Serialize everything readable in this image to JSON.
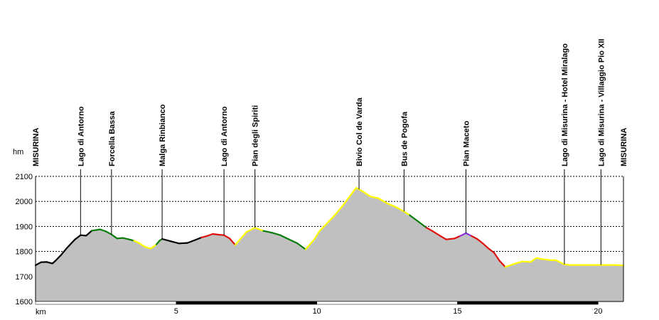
{
  "chart_data": {
    "type": "area",
    "title": "",
    "xlabel": "km",
    "ylabel": "hm",
    "xlim": [
      0,
      20.9
    ],
    "ylim": [
      1600,
      2100
    ],
    "x_ticks": [
      0,
      5,
      10,
      15,
      20
    ],
    "x_tick_labels": [
      "",
      "5",
      "10",
      "15",
      "20"
    ],
    "y_ticks": [
      1600,
      1700,
      1800,
      1900,
      2000,
      2100
    ],
    "grid": "horizontal-dashed",
    "fill_color": "#c0c0c0",
    "axis_color": "#000000",
    "waypoints": [
      {
        "label": "MISURINA",
        "x": 0.0
      },
      {
        "label": "Lago di Antorno",
        "x": 1.6
      },
      {
        "label": "Forcella Bassa",
        "x": 2.7
      },
      {
        "label": "Malga Rinbianco",
        "x": 4.5
      },
      {
        "label": "Lago di Antorno",
        "x": 6.7
      },
      {
        "label": "Pian degli Spiriti",
        "x": 7.8
      },
      {
        "label": "Bivio Col de Varda",
        "x": 11.5
      },
      {
        "label": "Bus de Pogofa",
        "x": 13.1
      },
      {
        "label": "Pian Maceto",
        "x": 15.3
      },
      {
        "label": "Lago di Misurina - Hotel Miralago",
        "x": 18.8
      },
      {
        "label": "Lago di Misurina - Villaggio Pio XII",
        "x": 20.1
      },
      {
        "label": "MISURINA",
        "x": 20.9
      }
    ],
    "series": [
      {
        "x": [
          0,
          0.2,
          0.4,
          0.6,
          0.7,
          0.9,
          1.1,
          1.4,
          1.6,
          1.8,
          2.0,
          2.3,
          2.5,
          2.7,
          2.9,
          3.1,
          3.3,
          3.5,
          3.7,
          3.9,
          4.1,
          4.3,
          4.4,
          4.5,
          4.8,
          5.1,
          5.4,
          5.7,
          5.9,
          6.1,
          6.3,
          6.5,
          6.7,
          6.9,
          7.1,
          7.3,
          7.5,
          7.8,
          8.1,
          8.4,
          8.7,
          9.0,
          9.3,
          9.6,
          9.9,
          10.1,
          10.3,
          10.6,
          10.9,
          11.2,
          11.4,
          11.6,
          11.9,
          12.2,
          12.5,
          12.8,
          13.1,
          13.3,
          13.6,
          13.9,
          14.1,
          14.4,
          14.6,
          14.9,
          15.1,
          15.3,
          15.5,
          15.7,
          15.9,
          16.1,
          16.3,
          16.5,
          16.7,
          17.0,
          17.3,
          17.6,
          17.8,
          18.0,
          18.3,
          18.5,
          18.8,
          19.0,
          19.3,
          19.6,
          19.9,
          20.1,
          20.3,
          20.6,
          20.9
        ],
        "y": [
          1745,
          1757,
          1758,
          1752,
          1762,
          1785,
          1812,
          1848,
          1865,
          1863,
          1883,
          1888,
          1880,
          1868,
          1852,
          1854,
          1849,
          1843,
          1832,
          1818,
          1812,
          1828,
          1842,
          1850,
          1841,
          1832,
          1834,
          1847,
          1856,
          1862,
          1870,
          1867,
          1865,
          1852,
          1826,
          1852,
          1878,
          1895,
          1882,
          1875,
          1865,
          1849,
          1833,
          1808,
          1847,
          1882,
          1905,
          1940,
          1980,
          2025,
          2054,
          2042,
          2020,
          2012,
          1992,
          1978,
          1960,
          1945,
          1920,
          1895,
          1882,
          1861,
          1848,
          1852,
          1862,
          1873,
          1862,
          1850,
          1832,
          1812,
          1795,
          1762,
          1738,
          1750,
          1760,
          1758,
          1774,
          1770,
          1765,
          1765,
          1748,
          1746,
          1746,
          1746,
          1746,
          1746,
          1746,
          1746,
          1744
        ],
        "segment_colors": [
          "#000000",
          "#000000",
          "#000000",
          "#000000",
          "#000000",
          "#000000",
          "#000000",
          "#000000",
          "#000000",
          "#000000",
          "#0a7d0a",
          "#0a7d0a",
          "#0a7d0a",
          "#0a7d0a",
          "#0a7d0a",
          "#0a7d0a",
          "#0a7d0a",
          "#ffff00",
          "#ffff00",
          "#ffff00",
          "#ffff00",
          "#0a7d0a",
          "#0a7d0a",
          "#000000",
          "#000000",
          "#000000",
          "#000000",
          "#000000",
          "#e01010",
          "#e01010",
          "#e01010",
          "#e01010",
          "#e01010",
          "#e01010",
          "#ffff00",
          "#ffff00",
          "#ffff00",
          "#ffff00",
          "#0a7d0a",
          "#0a7d0a",
          "#0a7d0a",
          "#0a7d0a",
          "#0a7d0a",
          "#ffff00",
          "#ffff00",
          "#ffff00",
          "#ffff00",
          "#ffff00",
          "#ffff00",
          "#ffff00",
          "#ffff00",
          "#ffff00",
          "#ffff00",
          "#ffff00",
          "#ffff00",
          "#ffff00",
          "#ffff00",
          "#0a7d0a",
          "#0a7d0a",
          "#e01010",
          "#e01010",
          "#e01010",
          "#e01010",
          "#e01010",
          "#8a2be2",
          "#8a2be2",
          "#e01010",
          "#e01010",
          "#e01010",
          "#e01010",
          "#e01010",
          "#e01010",
          "#ffff00",
          "#ffff00",
          "#ffff00",
          "#ffff00",
          "#ffff00",
          "#ffff00",
          "#ffff00",
          "#ffff00",
          "#ffff00",
          "#ffff00",
          "#ffff00",
          "#ffff00",
          "#ffff00",
          "#ffff00",
          "#ffff00",
          "#ffff00"
        ]
      }
    ]
  }
}
